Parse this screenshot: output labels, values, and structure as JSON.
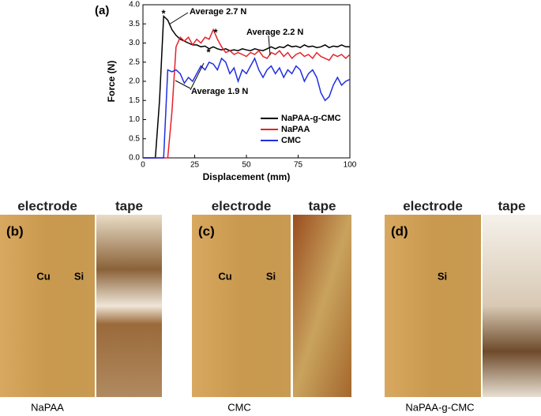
{
  "chart_data": {
    "type": "line",
    "panel_label": "(a)",
    "x_label": "Displacement (mm)",
    "y_label": "Force (N)",
    "x": [
      0,
      2,
      4,
      6,
      8,
      10,
      12,
      14,
      16,
      18,
      20,
      22,
      24,
      26,
      28,
      30,
      32,
      34,
      36,
      38,
      40,
      42,
      44,
      46,
      48,
      50,
      52,
      54,
      56,
      58,
      60,
      62,
      64,
      66,
      68,
      70,
      72,
      74,
      76,
      78,
      80,
      82,
      84,
      86,
      88,
      90,
      92,
      94,
      96,
      98,
      100
    ],
    "series": [
      {
        "name": "NaPAA-g-CMC",
        "color": "#000000",
        "values": [
          0,
          0,
          0,
          0,
          1.5,
          3.7,
          3.6,
          3.35,
          3.2,
          3.1,
          3.05,
          3.0,
          2.95,
          2.95,
          2.9,
          2.92,
          2.85,
          2.9,
          2.85,
          2.82,
          2.85,
          2.8,
          2.82,
          2.8,
          2.85,
          2.82,
          2.8,
          2.85,
          2.82,
          2.8,
          2.85,
          2.9,
          2.85,
          2.9,
          2.88,
          2.95,
          2.9,
          2.92,
          2.88,
          2.95,
          2.9,
          2.92,
          2.88,
          2.9,
          2.95,
          2.88,
          2.92,
          2.9,
          2.95,
          2.9,
          2.9
        ]
      },
      {
        "name": "NaPAA",
        "color": "#e8202a",
        "values": [
          0,
          0,
          0,
          0,
          0,
          0,
          0,
          1.2,
          2.9,
          3.15,
          3.05,
          3.15,
          2.95,
          3.1,
          3.0,
          3.15,
          3.1,
          3.35,
          3.1,
          2.9,
          2.75,
          2.8,
          2.7,
          2.75,
          2.7,
          2.65,
          2.75,
          2.7,
          2.8,
          2.65,
          2.6,
          2.75,
          2.7,
          2.8,
          2.65,
          2.75,
          2.6,
          2.7,
          2.75,
          2.65,
          2.7,
          2.6,
          2.75,
          2.65,
          2.6,
          2.55,
          2.7,
          2.65,
          2.7,
          2.6,
          2.7
        ]
      },
      {
        "name": "CMC",
        "color": "#1f2ee0",
        "values": [
          0,
          0,
          0,
          0,
          0,
          0,
          2.3,
          2.25,
          2.3,
          2.2,
          1.95,
          2.1,
          2.0,
          2.2,
          2.4,
          2.3,
          2.5,
          2.45,
          2.3,
          2.6,
          2.5,
          2.2,
          2.35,
          2.0,
          2.3,
          2.2,
          2.4,
          2.6,
          2.3,
          2.1,
          2.3,
          2.4,
          2.2,
          2.35,
          2.1,
          2.3,
          2.2,
          2.4,
          2.3,
          2.0,
          2.2,
          2.3,
          2.1,
          1.7,
          1.5,
          1.6,
          1.9,
          2.1,
          1.9,
          2.0,
          2.05
        ]
      }
    ],
    "xlim": [
      0,
      100
    ],
    "xticks": [
      0,
      25,
      50,
      75,
      100
    ],
    "ylim": [
      0,
      4
    ],
    "yticks": [
      {
        "value": 0,
        "label": "0.0"
      },
      0.5,
      {
        "value": 1,
        "label": "1.0"
      },
      1.5,
      {
        "value": 2,
        "label": "2.0"
      },
      2.5,
      {
        "value": 3,
        "label": "3.0"
      },
      3.5,
      {
        "value": 4,
        "label": "4.0"
      }
    ],
    "annotations": [
      "Average 2.7 N",
      "Average 2.2 N",
      "Average 1.9 N",
      "*",
      "*",
      "*"
    ],
    "legend": "right"
  },
  "panels": [
    {
      "label": "(b)",
      "electrode": "electrode",
      "tape": "tape",
      "marks": [
        "Cu",
        "Si"
      ],
      "caption": "NaPAA"
    },
    {
      "label": "(c)",
      "electrode": "electrode",
      "tape": "tape",
      "marks": [
        "Cu",
        "Si"
      ],
      "caption": "CMC"
    },
    {
      "label": "(d)",
      "electrode": "electrode",
      "tape": "tape",
      "marks": [
        "Si"
      ],
      "caption": "NaPAA-g-CMC"
    }
  ]
}
